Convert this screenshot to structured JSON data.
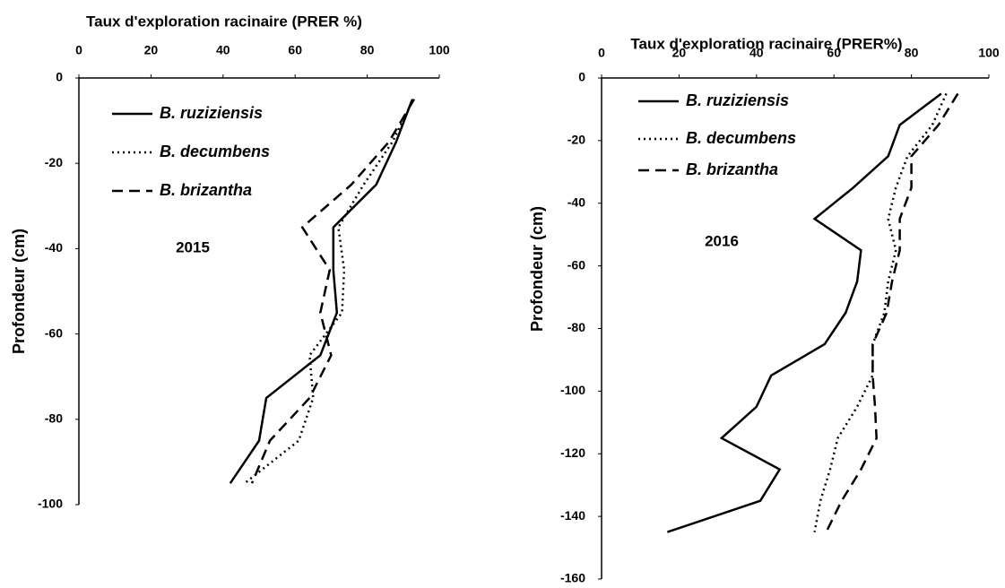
{
  "chart_data": [
    {
      "type": "line",
      "title": "Taux d'exploration racinaire (PRER %)",
      "ylabel": "Profondeur (cm)",
      "annotation": "2015",
      "xlim": [
        0,
        100
      ],
      "xticks": [
        0,
        20,
        40,
        60,
        80,
        100
      ],
      "ylim": [
        -100,
        0
      ],
      "yticks": [
        0,
        -20,
        -40,
        -60,
        -80,
        -100
      ],
      "y": [
        -5,
        -15,
        -25,
        -35,
        -45,
        -55,
        -65,
        -75,
        -85,
        -95
      ],
      "series": [
        {
          "name": "B. ruziziensis",
          "color": "#000000",
          "dash": "solid",
          "values": [
            92.5,
            88,
            82.5,
            70.6,
            70.6,
            71.6,
            67,
            52,
            50,
            42
          ]
        },
        {
          "name": "B. decumbens",
          "color": "#000000",
          "dash": "dotted",
          "values": [
            92.8,
            87,
            79,
            72,
            73.6,
            73,
            64,
            65,
            61,
            46
          ]
        },
        {
          "name": "B. brizantha",
          "color": "#000000",
          "dash": "dashed",
          "values": [
            93,
            86,
            75.6,
            62,
            69.6,
            67,
            70,
            64,
            53,
            48
          ]
        }
      ]
    },
    {
      "type": "line",
      "title": "Taux d'exploration racinaire (PRER%)",
      "ylabel": "Profondeur (cm)",
      "annotation": "2016",
      "xlim": [
        0,
        100
      ],
      "xticks": [
        0,
        20,
        40,
        60,
        80,
        100
      ],
      "ylim": [
        -160,
        0
      ],
      "yticks": [
        0,
        -20,
        -40,
        -60,
        -80,
        -100,
        -120,
        -140,
        -160
      ],
      "y": [
        -5,
        -15,
        -25,
        -35,
        -45,
        -55,
        -65,
        -75,
        -85,
        -95,
        -105,
        -115,
        -125,
        -135,
        -145
      ],
      "series": [
        {
          "name": "B. ruziziensis",
          "color": "#000000",
          "dash": "solid",
          "values": [
            87.7,
            77,
            74,
            65,
            55,
            67,
            66,
            63,
            57.6,
            43.8,
            40,
            31,
            46,
            41,
            17
          ]
        },
        {
          "name": "B. decumbens",
          "color": "#000000",
          "dash": "dotted",
          "values": [
            89,
            85.4,
            79,
            76,
            74,
            76,
            74,
            73,
            70,
            70,
            66,
            61,
            59,
            56.5,
            55
          ]
        },
        {
          "name": "B. brizantha",
          "color": "#000000",
          "dash": "dashed",
          "values": [
            92,
            87,
            80,
            80,
            77,
            77,
            75,
            73.6,
            70,
            70,
            70.6,
            71,
            67,
            62,
            58
          ]
        }
      ]
    }
  ]
}
